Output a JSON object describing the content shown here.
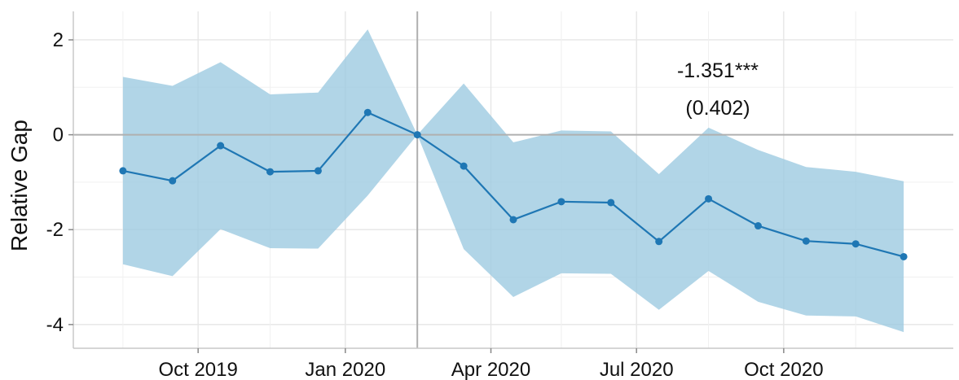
{
  "chart_data": {
    "type": "line",
    "title": "",
    "xlabel": "",
    "ylabel": "Relative Gap",
    "x": [
      "2019-08",
      "2019-09",
      "2019-10",
      "2019-11",
      "2019-12",
      "2020-01",
      "2020-02",
      "2020-03",
      "2020-04",
      "2020-05",
      "2020-06",
      "2020-07",
      "2020-08",
      "2020-09",
      "2020-10",
      "2020-11",
      "2020-12"
    ],
    "series": [
      {
        "values": [
          -0.76,
          -0.97,
          -0.23,
          -0.78,
          -0.76,
          0.47,
          0.0,
          -0.66,
          -1.79,
          -1.41,
          -1.43,
          -2.25,
          -1.35,
          -1.92,
          -2.24,
          -2.3,
          -2.57
        ],
        "ci_upper": [
          1.22,
          1.03,
          1.53,
          0.85,
          0.89,
          2.22,
          0.0,
          1.08,
          -0.16,
          0.09,
          0.07,
          -0.83,
          0.15,
          -0.32,
          -0.68,
          -0.78,
          -0.98
        ],
        "ci_lower": [
          -2.73,
          -2.98,
          -1.99,
          -2.39,
          -2.4,
          -1.28,
          0.0,
          -2.41,
          -3.42,
          -2.92,
          -2.93,
          -3.69,
          -2.87,
          -3.52,
          -3.81,
          -3.83,
          -4.16
        ]
      }
    ],
    "x_ticks": [
      "Oct 2019",
      "Jan 2020",
      "Apr 2020",
      "Jul 2020",
      "Oct 2020"
    ],
    "y_ticks": [
      2,
      0,
      -2,
      -4
    ],
    "ylim": [
      -4.5,
      2.6
    ],
    "xlim": [
      "2019-07-15",
      "2021-01-15"
    ],
    "reference_lines": {
      "horizontal": 0,
      "vertical": "2020-02-15"
    },
    "annotations": [
      "-1.351***",
      "(0.402)"
    ],
    "grid": true,
    "legend": "none",
    "colors": {
      "line": "#1f77b4",
      "band": "#9ecae1",
      "grid": "#e6e6e6",
      "ref": "#b0b0b0"
    }
  }
}
